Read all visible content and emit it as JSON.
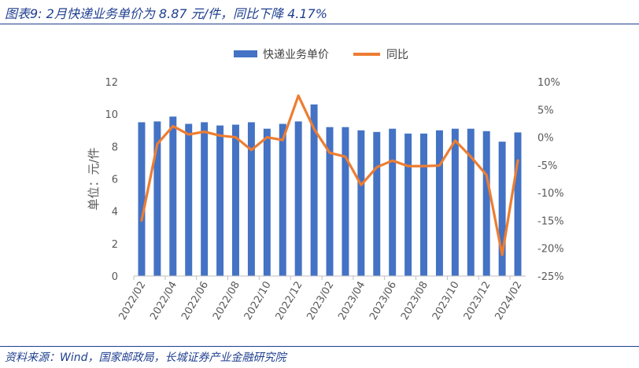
{
  "header": {
    "title": "图表9:  2月快递业务单价为 8.87 元/件，同比下降 4.17%"
  },
  "footer": {
    "source": "资料来源：Wind，国家邮政局，长城证券产业金融研究院"
  },
  "chart_data": {
    "type": "bar+line",
    "title": "",
    "ylabel": "单位：元/件",
    "y2label": "",
    "ylim": [
      0,
      12
    ],
    "yticks": [
      0,
      2,
      4,
      6,
      8,
      10,
      12
    ],
    "y2lim": [
      -25,
      10
    ],
    "y2ticks": [
      "10%",
      "5%",
      "0%",
      "-5%",
      "-10%",
      "-15%",
      "-20%",
      "-25%"
    ],
    "legend_position": "top",
    "grid": false,
    "x_tick_labels": [
      "2022/02",
      "2022/04",
      "2022/06",
      "2022/08",
      "2022/10",
      "2022/12",
      "2023/02",
      "2023/04",
      "2023/06",
      "2023/08",
      "2023/10",
      "2023/12",
      "2024/02"
    ],
    "categories": [
      "2022/02",
      "2022/03",
      "2022/04",
      "2022/05",
      "2022/06",
      "2022/07",
      "2022/08",
      "2022/09",
      "2022/10",
      "2022/11",
      "2022/12",
      "2023/01",
      "2023/02",
      "2023/03",
      "2023/04",
      "2023/05",
      "2023/06",
      "2023/07",
      "2023/08",
      "2023/09",
      "2023/10",
      "2023/11",
      "2023/12",
      "2024/01",
      "2024/02"
    ],
    "series": [
      {
        "name": "快递业务单价",
        "kind": "bar",
        "axis": "left",
        "color": "#4472c4",
        "values": [
          9.5,
          9.55,
          9.85,
          9.4,
          9.5,
          9.3,
          9.35,
          9.5,
          9.1,
          9.4,
          9.55,
          10.6,
          9.2,
          9.2,
          9.0,
          8.9,
          9.1,
          8.8,
          8.8,
          9.0,
          9.1,
          9.1,
          8.95,
          8.3,
          8.87
        ]
      },
      {
        "name": "同比",
        "kind": "line",
        "axis": "right",
        "color": "#ed7d31",
        "values": [
          -15.0,
          -1.2,
          2.0,
          0.5,
          1.0,
          0.3,
          0.0,
          -2.3,
          0.0,
          -0.5,
          7.5,
          1.5,
          -2.8,
          -3.5,
          -8.6,
          -5.4,
          -4.2,
          -5.2,
          -5.2,
          -5.1,
          -0.6,
          -3.5,
          -6.8,
          -21.2,
          -4.17
        ]
      }
    ]
  }
}
